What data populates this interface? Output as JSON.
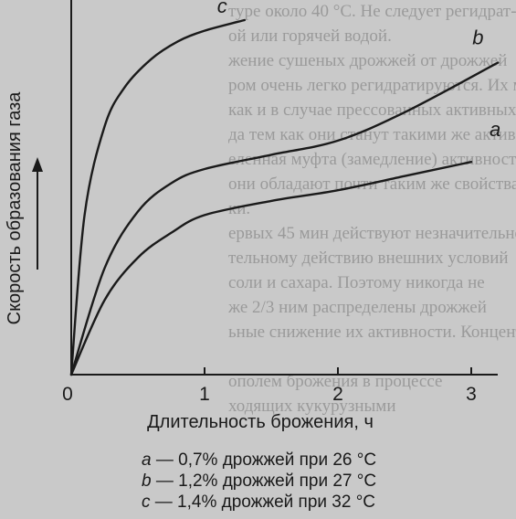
{
  "background_text": [
    "туре около 40 °С. Не следует регидрат-",
    "ой или горячей водой.",
    "жение сушеных дрожжей от дрожжей",
    "ром очень легко регидратируются. Их можно",
    "как и в случае прессованных активных",
    "да тем как они станут такими же активными,",
    "еленная муфта (замедление) активности",
    "они обладают почти таким же свойствами",
    "ки.",
    "ервых 45 мин действуют незначительно",
    "тельному действию внешних условий",
    "соли и сахара. Поэтому никогда не",
    "же 2/3 ним распределены дрожжей",
    "ьные снижение их активности. Концентра-",
    "",
    "ополем брожения в процессе",
    "ходящих кукурузными"
  ],
  "colors": {
    "background": "#c9c9c9",
    "ink": "#1a1a1a",
    "ghost_text": "#9a9a9a"
  },
  "chart_data": {
    "type": "line",
    "xlabel": "Длительность брожения, ч",
    "ylabel": "Скорость образования газа",
    "x_ticks": [
      "0",
      "1",
      "2",
      "3"
    ],
    "xlim": [
      0,
      3.2
    ],
    "ylim": [
      0,
      1
    ],
    "series": [
      {
        "name": "a",
        "x": [
          0,
          0.25,
          0.5,
          0.75,
          1,
          1.5,
          2,
          2.5,
          3.0
        ],
        "y": [
          0,
          0.21,
          0.33,
          0.4,
          0.45,
          0.49,
          0.52,
          0.56,
          0.6
        ]
      },
      {
        "name": "b",
        "x": [
          0,
          0.25,
          0.5,
          0.75,
          1,
          1.5,
          2,
          2.5,
          3.2
        ],
        "y": [
          0,
          0.3,
          0.46,
          0.54,
          0.58,
          0.62,
          0.66,
          0.74,
          0.88
        ]
      },
      {
        "name": "c",
        "x": [
          0,
          0.1,
          0.25,
          0.4,
          0.6,
          0.8,
          1.0,
          1.3
        ],
        "y": [
          0,
          0.45,
          0.7,
          0.81,
          0.89,
          0.94,
          0.97,
          1.0
        ]
      }
    ],
    "legend": [
      {
        "letter": "a",
        "text": " — 0,7% дрожжей при 26 °С"
      },
      {
        "letter": "b",
        "text": " — 1,2% дрожжей при 27 °С"
      },
      {
        "letter": "c",
        "text": " — 1,4% дрожжей при 32 °С"
      }
    ]
  }
}
